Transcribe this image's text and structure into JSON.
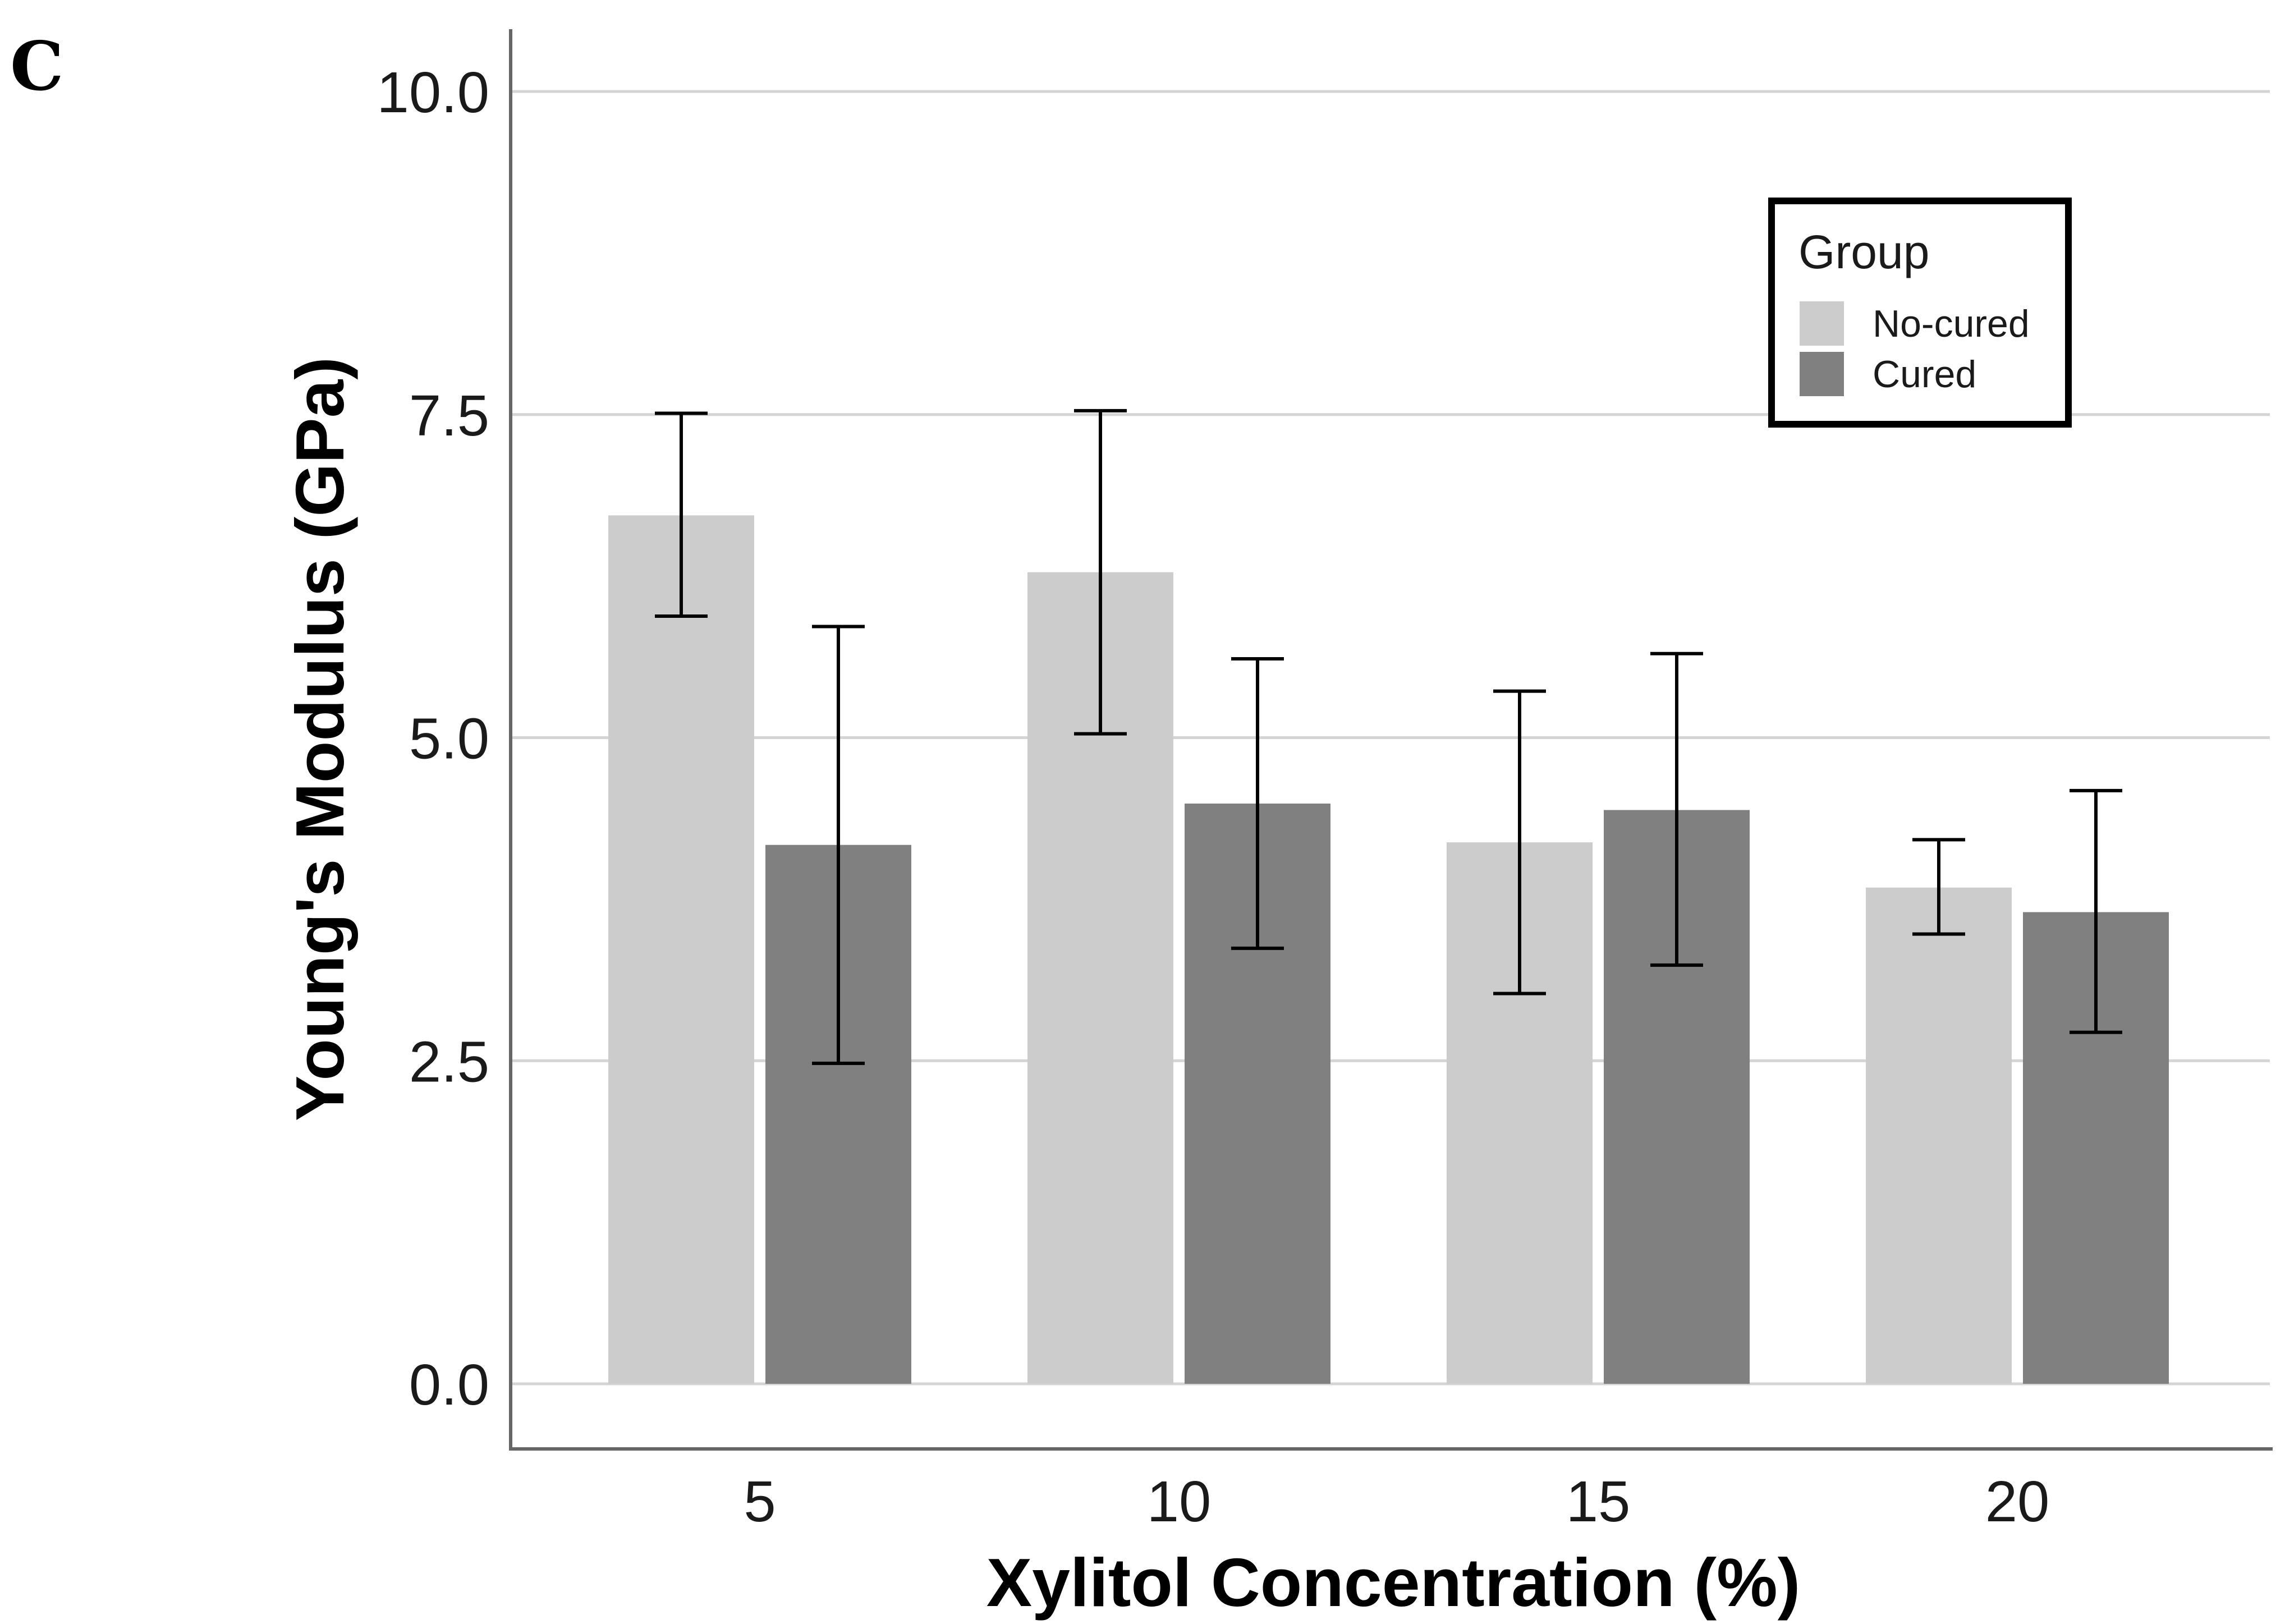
{
  "panel_label": "C",
  "colors": {
    "no_cured": "#cccccc",
    "cured": "#808080",
    "grid": "#d4d4d4",
    "axis": "#666666",
    "errorbar": "#000000"
  },
  "chart_data": {
    "type": "bar",
    "title": "",
    "xlabel": "Xylitol Concentration (%)",
    "ylabel": "Young's Modulus (GPa)",
    "ylim": [
      0,
      10
    ],
    "yticks": [
      0.0,
      2.5,
      5.0,
      7.5,
      10.0
    ],
    "ytick_labels": [
      "0.0",
      "2.5",
      "5.0",
      "7.5",
      "10.0"
    ],
    "categories": [
      "5",
      "10",
      "15",
      "20"
    ],
    "legend": {
      "title": "Group",
      "position": "top-right"
    },
    "series": [
      {
        "name": "No-cured",
        "values": [
          6.72,
          6.28,
          4.19,
          3.84
        ],
        "err_low": [
          5.94,
          5.03,
          3.02,
          3.48
        ],
        "err_high": [
          7.51,
          7.53,
          5.36,
          4.21
        ]
      },
      {
        "name": "Cured",
        "values": [
          4.17,
          4.49,
          4.44,
          3.65
        ],
        "err_low": [
          2.48,
          3.37,
          3.24,
          2.72
        ],
        "err_high": [
          5.86,
          5.61,
          5.65,
          4.59
        ]
      }
    ]
  }
}
